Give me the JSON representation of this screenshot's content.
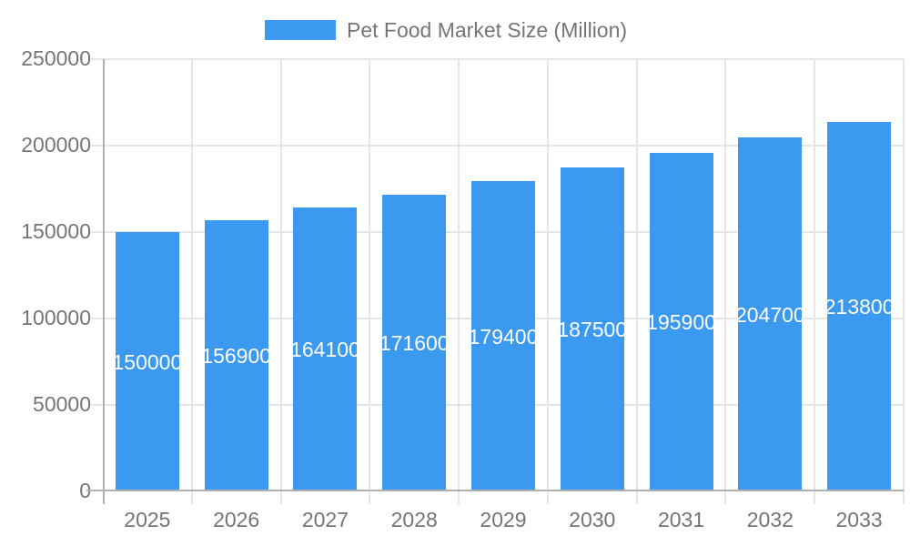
{
  "legend": {
    "label": "Pet Food Market Size (Million)"
  },
  "colors": {
    "bar": "#3B99EF",
    "gridline": "#e6e6e6",
    "axis_line": "#b0b0b0",
    "tick_text": "#757575",
    "bar_label_text": "#ffffff",
    "background": "#ffffff"
  },
  "chart_data": {
    "type": "bar",
    "title": "Pet Food Market Size (Million)",
    "legend_label": "Pet Food Market Size (Million)",
    "legend_position": "top-center",
    "categories": [
      "2025",
      "2026",
      "2027",
      "2028",
      "2029",
      "2030",
      "2031",
      "2032",
      "2033"
    ],
    "values": [
      150000,
      156900,
      164100,
      171600,
      179400,
      187500,
      195900,
      204700,
      213800
    ],
    "value_labels": [
      "150000",
      "156900",
      "164100",
      "171600",
      "179400",
      "187500",
      "195900",
      "204700",
      "213800"
    ],
    "xlabel": "",
    "ylabel": "",
    "ylim": [
      0,
      250000
    ],
    "yticks": [
      0,
      50000,
      100000,
      150000,
      200000,
      250000
    ],
    "grid": true
  }
}
